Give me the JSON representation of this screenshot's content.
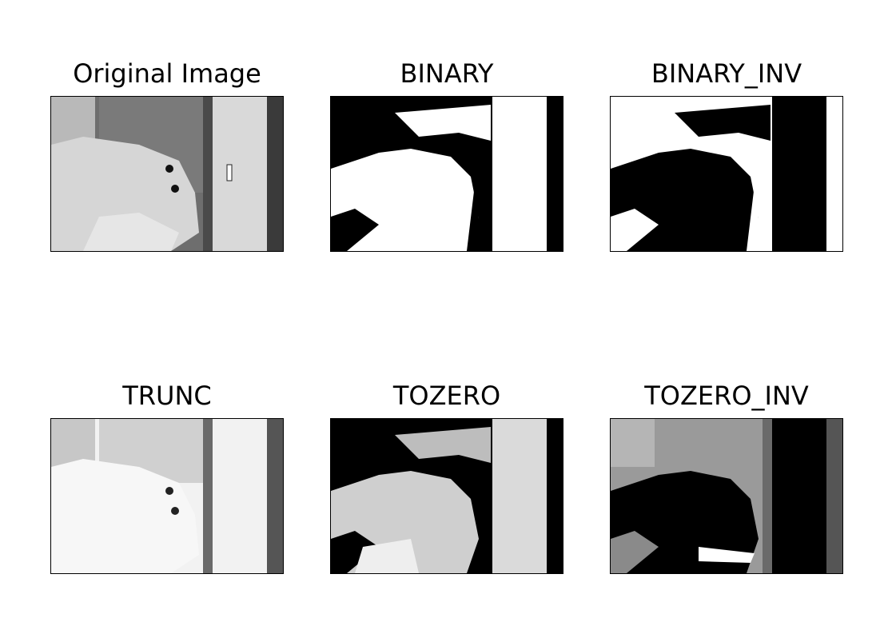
{
  "figure": {
    "panels": [
      {
        "id": "original",
        "title": "Original Image",
        "mode": "grayscale"
      },
      {
        "id": "binary",
        "title": "BINARY",
        "mode": "binary"
      },
      {
        "id": "binary_inv",
        "title": "BINARY_INV",
        "mode": "binary_inv"
      },
      {
        "id": "trunc",
        "title": "TRUNC",
        "mode": "trunc"
      },
      {
        "id": "tozero",
        "title": "TOZERO",
        "mode": "tozero"
      },
      {
        "id": "tozero_inv",
        "title": "TOZERO_INV",
        "mode": "tozero_inv"
      }
    ]
  }
}
